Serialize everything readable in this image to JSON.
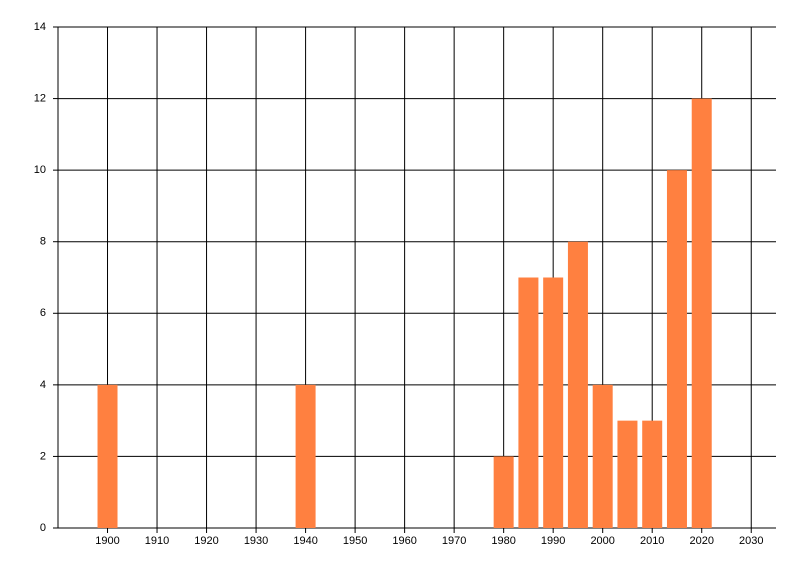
{
  "chart_data": {
    "type": "bar",
    "x": [
      1900,
      1940,
      1980,
      1985,
      1990,
      1995,
      2000,
      2005,
      2010,
      2015,
      2020
    ],
    "values": [
      4,
      4,
      2,
      7,
      7,
      8,
      4,
      3,
      3,
      10,
      12
    ],
    "color": "#ff8040",
    "xlim": [
      1890,
      2035
    ],
    "xticks": [
      1900,
      1910,
      1920,
      1930,
      1940,
      1950,
      1960,
      1970,
      1980,
      1990,
      2000,
      2010,
      2020,
      2030
    ],
    "ylim": [
      0,
      14
    ],
    "yticks": [
      0,
      2,
      4,
      6,
      8,
      10,
      12,
      14
    ],
    "grid": true
  }
}
